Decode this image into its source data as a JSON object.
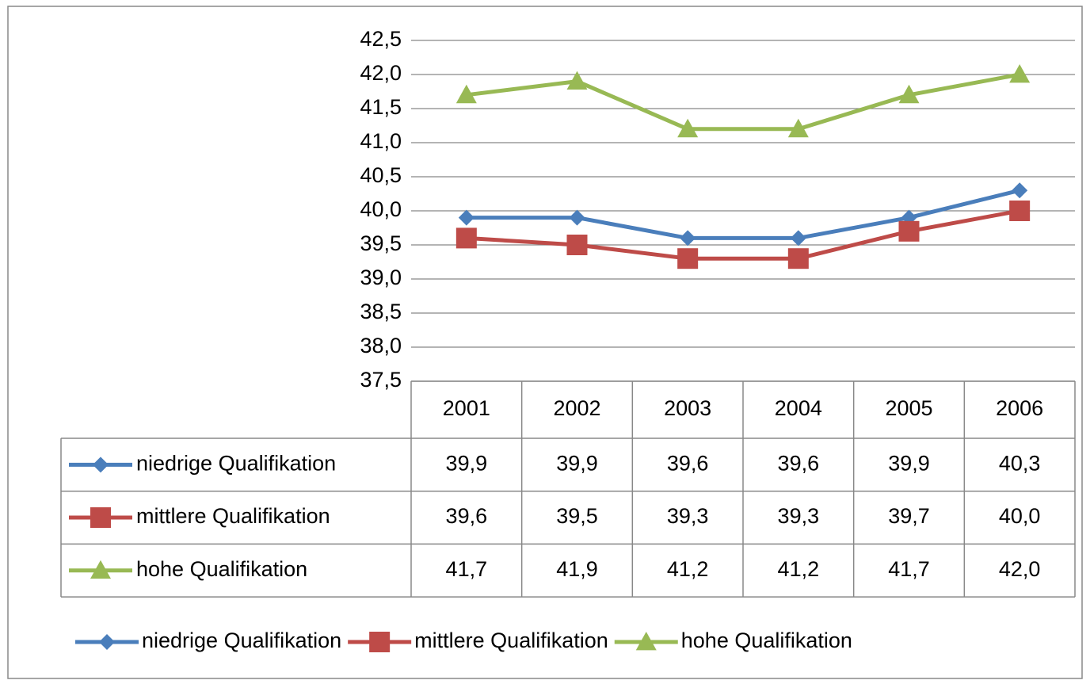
{
  "chart_data": {
    "type": "line",
    "categories": [
      "2001",
      "2002",
      "2003",
      "2004",
      "2005",
      "2006"
    ],
    "series": [
      {
        "name": "niedrige Qualifikation",
        "color": "#4a7ebb",
        "marker": "diamond",
        "values": [
          39.9,
          39.9,
          39.6,
          39.6,
          39.9,
          40.3
        ],
        "value_labels": [
          "39,9",
          "39,9",
          "39,6",
          "39,6",
          "39,9",
          "40,3"
        ]
      },
      {
        "name": "mittlere Qualifikation",
        "color": "#be4b48",
        "marker": "square",
        "values": [
          39.6,
          39.5,
          39.3,
          39.3,
          39.7,
          40.0
        ],
        "value_labels": [
          "39,6",
          "39,5",
          "39,3",
          "39,3",
          "39,7",
          "40,0"
        ]
      },
      {
        "name": "hohe Qualifikation",
        "color": "#98b954",
        "marker": "triangle",
        "values": [
          41.7,
          41.9,
          41.2,
          41.2,
          41.7,
          42.0
        ],
        "value_labels": [
          "41,7",
          "41,9",
          "41,2",
          "41,2",
          "41,7",
          "42,0"
        ]
      }
    ],
    "ylim": [
      37.5,
      42.5
    ],
    "yticks": [
      {
        "value": 37.5,
        "label": "37,5"
      },
      {
        "value": 38.0,
        "label": "38,0"
      },
      {
        "value": 38.5,
        "label": "38,5"
      },
      {
        "value": 39.0,
        "label": "39,0"
      },
      {
        "value": 39.5,
        "label": "39,5"
      },
      {
        "value": 40.0,
        "label": "40,0"
      },
      {
        "value": 40.5,
        "label": "40,5"
      },
      {
        "value": 41.0,
        "label": "41,0"
      },
      {
        "value": 41.5,
        "label": "41,5"
      },
      {
        "value": 42.0,
        "label": "42,0"
      },
      {
        "value": 42.5,
        "label": "42,5"
      }
    ],
    "grid": true,
    "legend": "bottom",
    "data_table": true
  }
}
